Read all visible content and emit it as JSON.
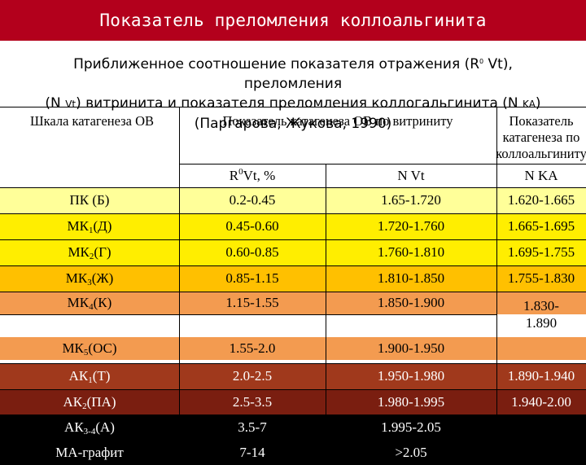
{
  "title": "Показатель преломления коллоальгинита",
  "subtitle": {
    "line1_a": "Приближенное соотношение показателя отражения (R",
    "line1_sup": "0",
    "line1_b": " Vt), преломления",
    "line2_a": "(N ",
    "line2_small": "Vt",
    "line2_b": ") витринита и показателя преломления коллогальгинита (N ",
    "line2_small2": "KA",
    "line2_c": ")",
    "line3": "(Паргарова, Жукова, 1990)"
  },
  "table": {
    "headers": {
      "col1": "Шкала катагенеза ОВ",
      "col2": "Показатель катагенеза ОВ по витриниту",
      "col4": "Показатель катагенеза по коллоальгиниту",
      "sub_r": "R",
      "sub_r_sup": "0",
      "sub_r_rest": " Vt, %",
      "sub_nvt": "N Vt",
      "sub_nka": "N KA"
    },
    "rows": [
      {
        "stage": "ПК (Б)",
        "sub": "",
        "rest": "",
        "r": "0.2-0.45",
        "nvt": "1.65-1.720",
        "nka": "1.620-1.665"
      },
      {
        "stage": "МК",
        "sub": "1",
        "rest": " (Д)",
        "r": "0.45-0.60",
        "nvt": "1.720-1.760",
        "nka": "1.665-1.695"
      },
      {
        "stage": "МК",
        "sub": "2",
        "rest": " (Г)",
        "r": "0.60-0.85",
        "nvt": "1.760-1.810",
        "nka": "1.695-1.755"
      },
      {
        "stage": "МК",
        "sub": "3",
        "rest": " (Ж)",
        "r": "0.85-1.15",
        "nvt": "1.810-1.850",
        "nka": "1.755-1.830"
      },
      {
        "stage": "МК",
        "sub": "4",
        "rest": " (К)",
        "r": "1.15-1.55",
        "nvt": "1.850-1.900",
        "nka": "1.830-\n1.890"
      },
      {
        "stage": "МК",
        "sub": "5",
        "rest": " (ОС)",
        "r": "1.55-2.0",
        "nvt": "1.900-1.950",
        "nka": ""
      },
      {
        "stage": "АК",
        "sub": "1",
        "rest": " (Т)",
        "r": "2.0-2.5",
        "nvt": "1.950-1.980",
        "nka": "1.890-1.940"
      },
      {
        "stage": "АК",
        "sub": "2",
        "rest": " (ПА)",
        "r": "2.5-3.5",
        "nvt": "1.980-1.995",
        "nka": "1.940-2.00"
      },
      {
        "stage": "АК",
        "sub": "3-4",
        "rest": " (А)",
        "r": "3.5-7",
        "nvt": "1.995-2.05",
        "nka": ""
      },
      {
        "stage": "МА-графит",
        "sub": "",
        "rest": "",
        "r": "7-14",
        "nvt": ">2.05",
        "nka": ""
      }
    ]
  },
  "colors": {
    "title_bg": "#b3001c",
    "row_colors": [
      "#ffff99",
      "#ffee00",
      "#ffee00",
      "#ffc000",
      "#f39b50",
      "#f39b50",
      "#a0391c",
      "#7a1e10",
      "#000000",
      "#000000"
    ],
    "text_on_dark": "#ffffff"
  }
}
